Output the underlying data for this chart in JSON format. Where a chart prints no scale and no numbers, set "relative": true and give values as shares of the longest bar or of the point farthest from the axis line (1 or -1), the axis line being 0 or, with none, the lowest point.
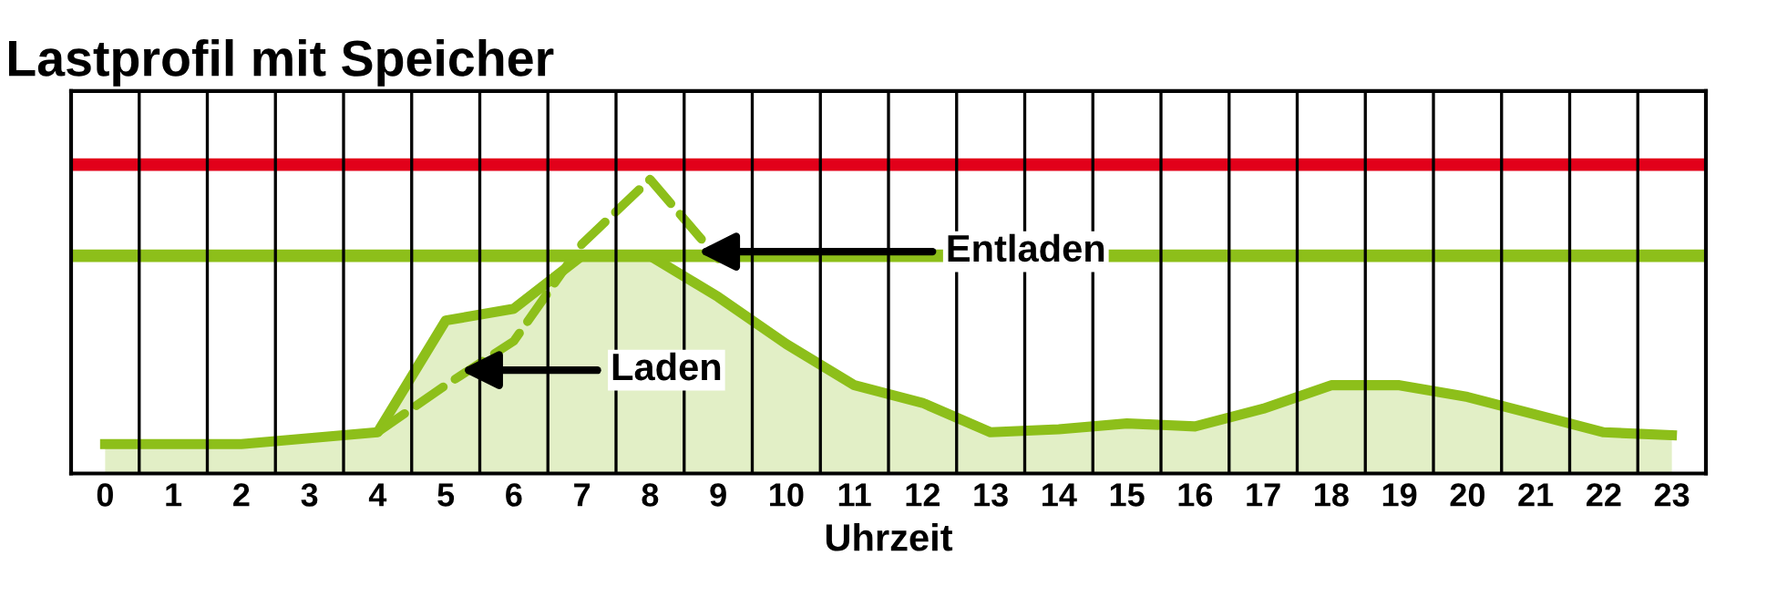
{
  "chart_data": {
    "type": "area",
    "title": "Lastprofil mit Speicher",
    "xlabel": "Uhrzeit",
    "relative": true,
    "categories": [
      "0",
      "1",
      "2",
      "3",
      "4",
      "5",
      "6",
      "7",
      "8",
      "9",
      "10",
      "11",
      "12",
      "13",
      "14",
      "15",
      "16",
      "17",
      "18",
      "19",
      "20",
      "21",
      "22",
      "23"
    ],
    "series": [
      {
        "color": "#8dbf1a",
        "values": [
          0.1,
          0.1,
          0.1,
          0.12,
          0.14,
          0.52,
          0.56,
          0.74,
          0.74,
          0.6,
          0.44,
          0.3,
          0.24,
          0.14,
          0.15,
          0.17,
          0.16,
          0.22,
          0.3,
          0.3,
          0.26,
          0.2,
          0.14,
          0.13
        ]
      },
      {
        "type": "line",
        "color": "#8dbf1a",
        "line_style": "dashed",
        "values": [
          null,
          null,
          null,
          null,
          0.14,
          0.3,
          0.45,
          0.78,
          1.0,
          0.73,
          null,
          null,
          null,
          null,
          null,
          null,
          null,
          null,
          null,
          null,
          null,
          null,
          null,
          null
        ]
      }
    ],
    "ref_lines": [
      {
        "axis": "y",
        "value": 1.05,
        "label": null,
        "color": "#e2001a"
      },
      {
        "axis": "y",
        "value": 0.74,
        "label": null,
        "color": "#8dbf1a"
      }
    ],
    "annotations": [
      "Laden",
      "Entladen"
    ],
    "grid": "x",
    "legend": false
  }
}
